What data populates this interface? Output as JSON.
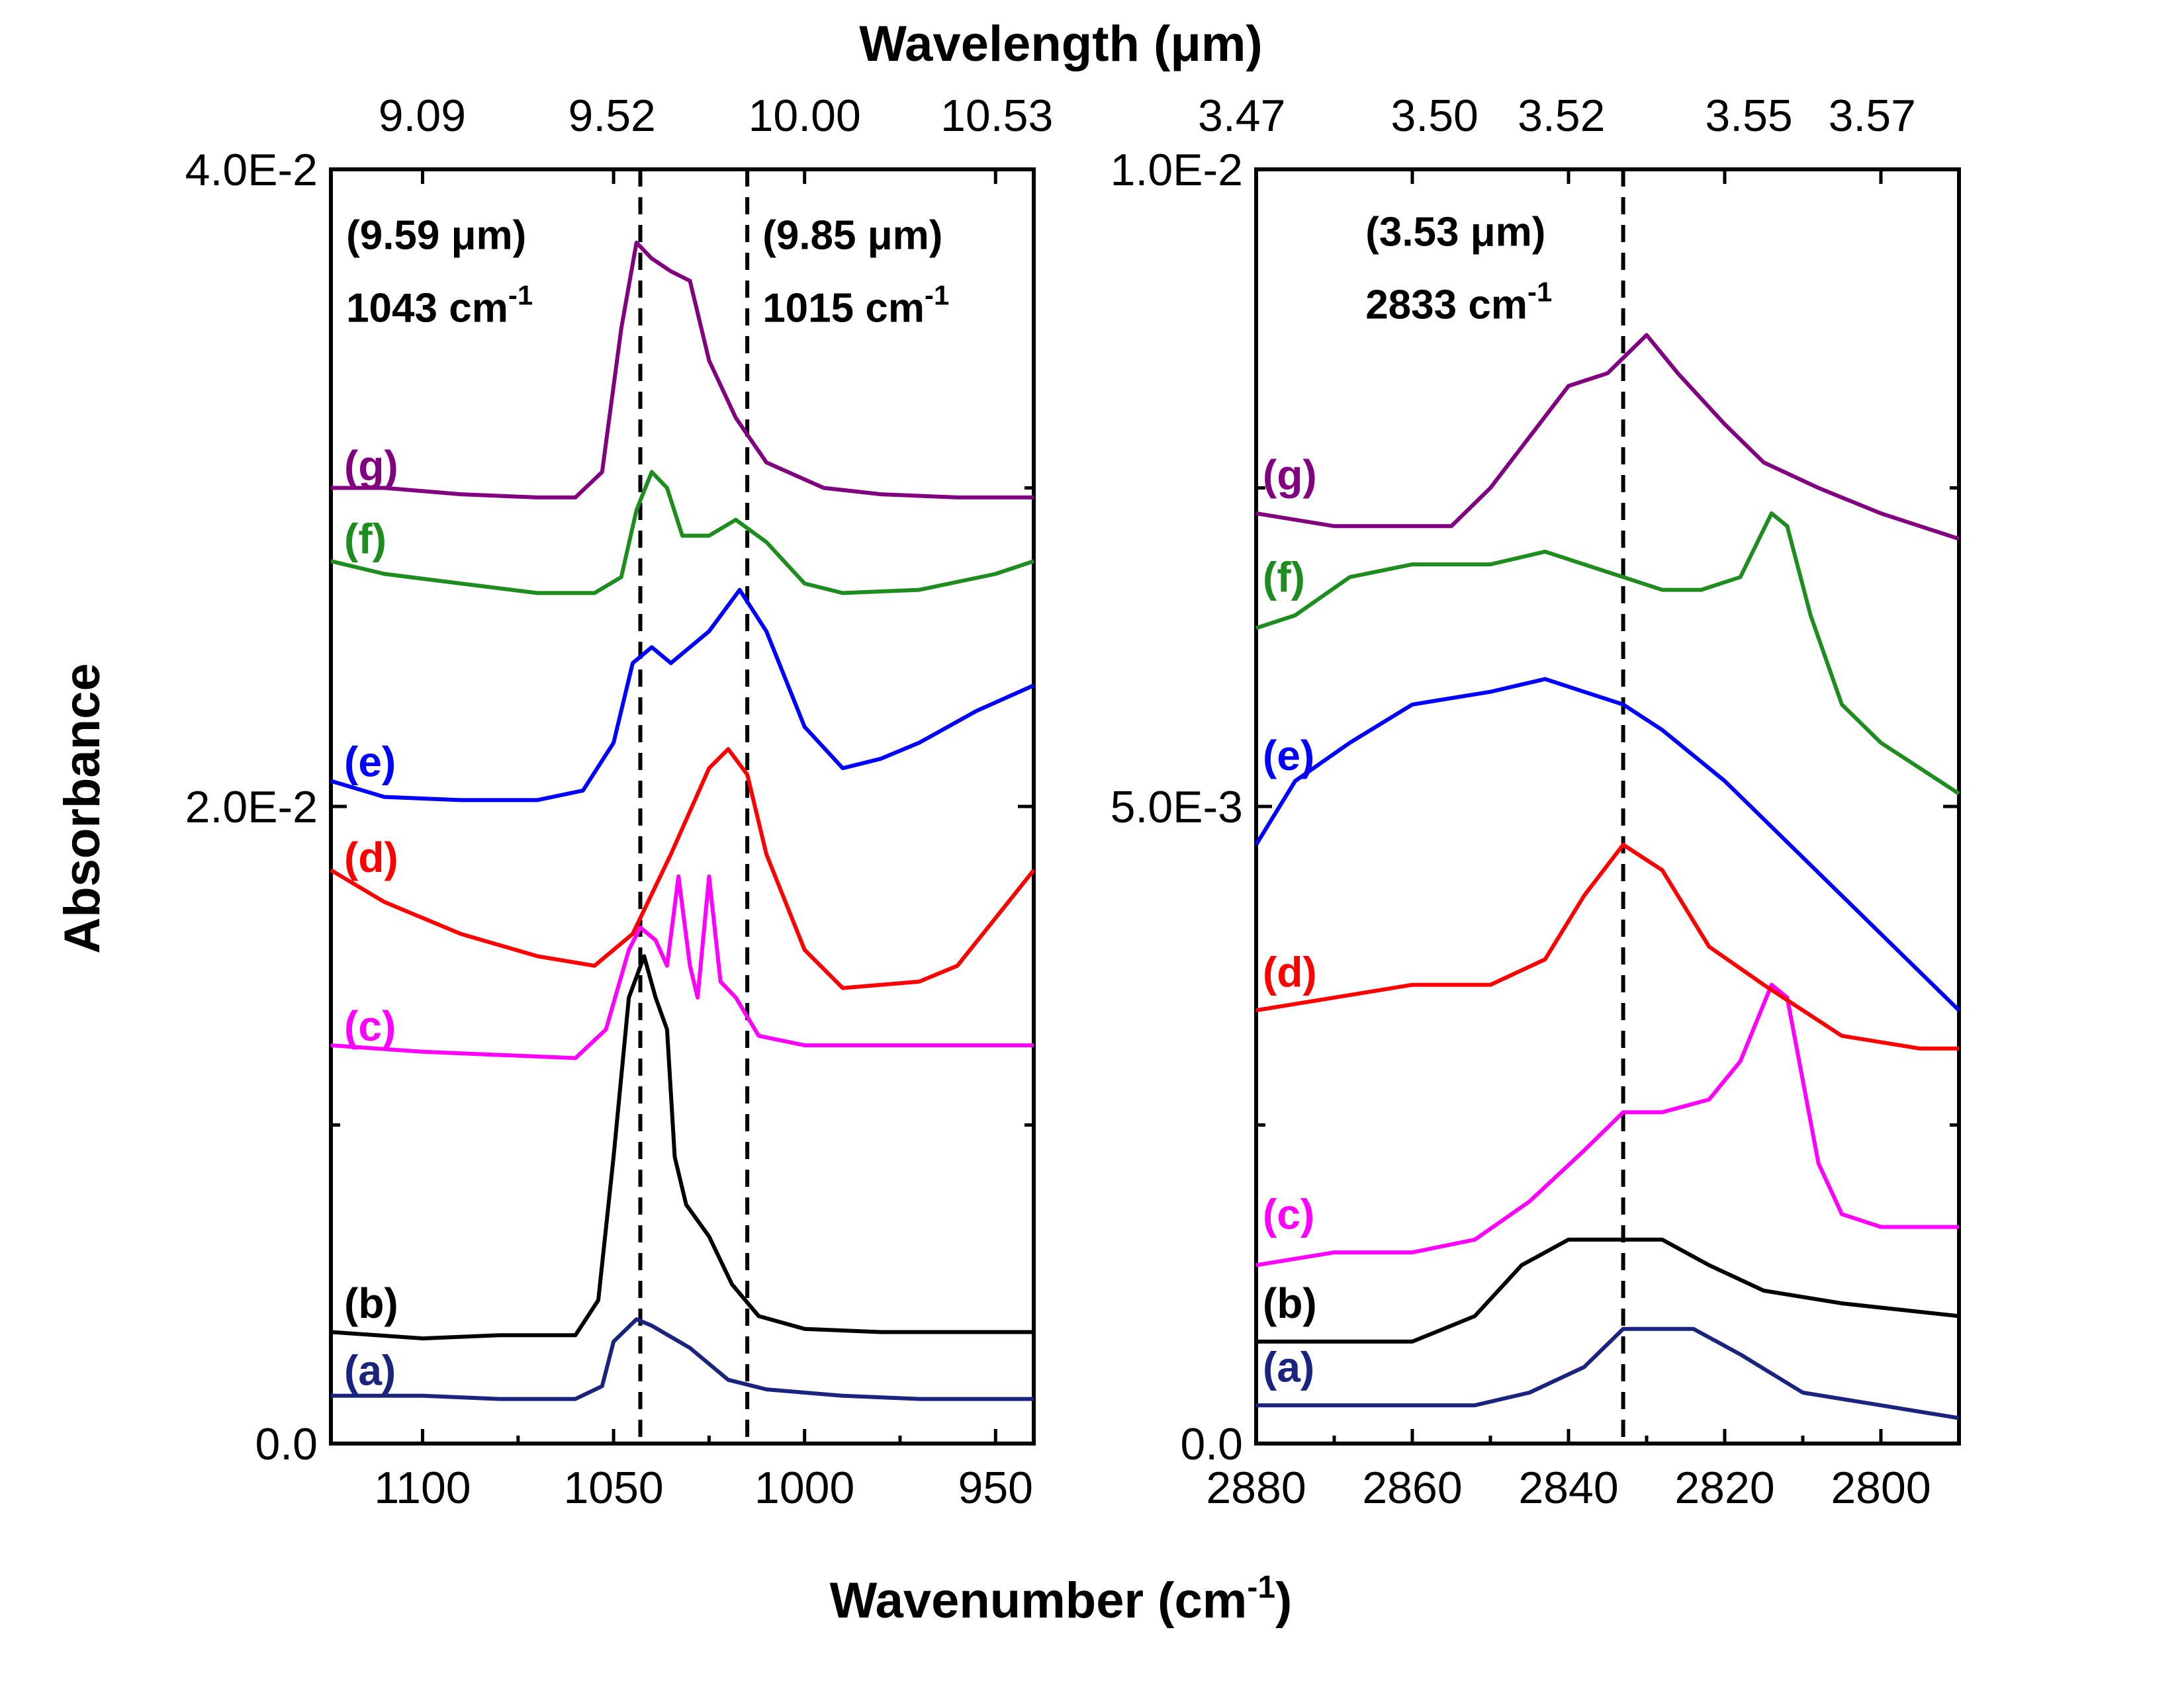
{
  "figure": {
    "bottom_axis_title": "Wavenumber (cm",
    "bottom_axis_title_sup": "-1",
    "bottom_axis_title_end": ")",
    "top_axis_title": "Wavelength (μm)",
    "left_axis_title": "Absorbance"
  },
  "chart_data": [
    {
      "type": "line",
      "panel": "left",
      "x_reversed": true,
      "xlim": [
        1124,
        940
      ],
      "ylim": [
        0,
        0.04
      ],
      "xticks": [
        1100,
        1050,
        1000,
        950
      ],
      "xtick_labels": [
        "1100",
        "1050",
        "1000",
        "950"
      ],
      "yticks": [
        0,
        0.02,
        0.04
      ],
      "ytick_labels": [
        "0.0",
        "2.0E-2",
        "4.0E-2"
      ],
      "top_ticks_um": [
        9.09,
        9.52,
        10.0,
        10.53
      ],
      "top_tick_labels": [
        "9.09",
        "9.52",
        "10.00",
        "10.53"
      ],
      "reference_lines": [
        1043,
        1015
      ],
      "annotations": [
        {
          "line1": "(9.59 μm)",
          "line2": "1043 cm",
          "sup": "-1",
          "at_x": 1120,
          "at_y": 0.0375
        },
        {
          "line1": "(9.85 μm)",
          "line2": "1015 cm",
          "sup": "-1",
          "at_x": 1011,
          "at_y": 0.0375
        }
      ],
      "series": [
        {
          "name": "(a)",
          "color": "#1a237e",
          "label_y": 0.0023,
          "points": [
            [
              1124,
              0.0015
            ],
            [
              1100,
              0.0015
            ],
            [
              1080,
              0.0014
            ],
            [
              1060,
              0.0014
            ],
            [
              1053,
              0.0018
            ],
            [
              1050,
              0.0032
            ],
            [
              1044,
              0.0039
            ],
            [
              1040,
              0.0037
            ],
            [
              1030,
              0.003
            ],
            [
              1020,
              0.002
            ],
            [
              1010,
              0.0017
            ],
            [
              990,
              0.0015
            ],
            [
              970,
              0.0014
            ],
            [
              950,
              0.0014
            ],
            [
              940,
              0.0014
            ]
          ]
        },
        {
          "name": "(b)",
          "color": "#000000",
          "label_y": 0.0044,
          "points": [
            [
              1124,
              0.0035
            ],
            [
              1100,
              0.0033
            ],
            [
              1080,
              0.0034
            ],
            [
              1060,
              0.0034
            ],
            [
              1054,
              0.0045
            ],
            [
              1050,
              0.009
            ],
            [
              1046,
              0.014
            ],
            [
              1042,
              0.0153
            ],
            [
              1039,
              0.014
            ],
            [
              1036,
              0.013
            ],
            [
              1034,
              0.009
            ],
            [
              1031,
              0.0075
            ],
            [
              1025,
              0.0065
            ],
            [
              1019,
              0.005
            ],
            [
              1012,
              0.004
            ],
            [
              1000,
              0.0036
            ],
            [
              980,
              0.0035
            ],
            [
              960,
              0.0035
            ],
            [
              940,
              0.0035
            ]
          ]
        },
        {
          "name": "(c)",
          "color": "#ff00ff",
          "label_y": 0.0131,
          "points": [
            [
              1124,
              0.0125
            ],
            [
              1100,
              0.0123
            ],
            [
              1080,
              0.0122
            ],
            [
              1060,
              0.0121
            ],
            [
              1052,
              0.013
            ],
            [
              1046,
              0.0155
            ],
            [
              1043,
              0.0162
            ],
            [
              1039,
              0.0158
            ],
            [
              1036,
              0.015
            ],
            [
              1033,
              0.0178
            ],
            [
              1030,
              0.015
            ],
            [
              1028,
              0.014
            ],
            [
              1025,
              0.0178
            ],
            [
              1022,
              0.0145
            ],
            [
              1018,
              0.014
            ],
            [
              1012,
              0.0128
            ],
            [
              1000,
              0.0125
            ],
            [
              980,
              0.0125
            ],
            [
              960,
              0.0125
            ],
            [
              940,
              0.0125
            ]
          ]
        },
        {
          "name": "(d)",
          "color": "#ff0000",
          "label_y": 0.0184,
          "points": [
            [
              1124,
              0.018
            ],
            [
              1110,
              0.017
            ],
            [
              1090,
              0.016
            ],
            [
              1070,
              0.0153
            ],
            [
              1055,
              0.015
            ],
            [
              1045,
              0.016
            ],
            [
              1035,
              0.0185
            ],
            [
              1025,
              0.0212
            ],
            [
              1020,
              0.0218
            ],
            [
              1015,
              0.021
            ],
            [
              1010,
              0.0185
            ],
            [
              1000,
              0.0155
            ],
            [
              990,
              0.0143
            ],
            [
              970,
              0.0145
            ],
            [
              960,
              0.015
            ],
            [
              940,
              0.018
            ]
          ]
        },
        {
          "name": "(e)",
          "color": "#0000ff",
          "label_y": 0.0214,
          "points": [
            [
              1124,
              0.0208
            ],
            [
              1110,
              0.0203
            ],
            [
              1090,
              0.0202
            ],
            [
              1070,
              0.0202
            ],
            [
              1058,
              0.0205
            ],
            [
              1050,
              0.022
            ],
            [
              1045,
              0.0245
            ],
            [
              1040,
              0.025
            ],
            [
              1035,
              0.0245
            ],
            [
              1025,
              0.0255
            ],
            [
              1017,
              0.0268
            ],
            [
              1010,
              0.0255
            ],
            [
              1000,
              0.0225
            ],
            [
              990,
              0.0212
            ],
            [
              980,
              0.0215
            ],
            [
              970,
              0.022
            ],
            [
              955,
              0.023
            ],
            [
              940,
              0.0238
            ]
          ]
        },
        {
          "name": "(f)",
          "color": "#1e8c1e",
          "label_y": 0.0284,
          "points": [
            [
              1124,
              0.0277
            ],
            [
              1110,
              0.0273
            ],
            [
              1090,
              0.027
            ],
            [
              1070,
              0.0267
            ],
            [
              1055,
              0.0267
            ],
            [
              1048,
              0.0272
            ],
            [
              1044,
              0.0293
            ],
            [
              1040,
              0.0305
            ],
            [
              1036,
              0.03
            ],
            [
              1032,
              0.0285
            ],
            [
              1025,
              0.0285
            ],
            [
              1018,
              0.029
            ],
            [
              1010,
              0.0283
            ],
            [
              1000,
              0.027
            ],
            [
              990,
              0.0267
            ],
            [
              970,
              0.0268
            ],
            [
              950,
              0.0273
            ],
            [
              940,
              0.0277
            ]
          ]
        },
        {
          "name": "(g)",
          "color": "#800080",
          "label_y": 0.0307,
          "points": [
            [
              1124,
              0.03
            ],
            [
              1110,
              0.03
            ],
            [
              1090,
              0.0298
            ],
            [
              1070,
              0.0297
            ],
            [
              1060,
              0.0297
            ],
            [
              1053,
              0.0305
            ],
            [
              1048,
              0.035
            ],
            [
              1044,
              0.0377
            ],
            [
              1040,
              0.0372
            ],
            [
              1035,
              0.0368
            ],
            [
              1030,
              0.0365
            ],
            [
              1025,
              0.034
            ],
            [
              1018,
              0.0322
            ],
            [
              1010,
              0.0308
            ],
            [
              995,
              0.03
            ],
            [
              980,
              0.0298
            ],
            [
              960,
              0.0297
            ],
            [
              940,
              0.0297
            ]
          ]
        }
      ]
    },
    {
      "type": "line",
      "panel": "right",
      "x_reversed": true,
      "xlim": [
        2880,
        2790
      ],
      "ylim": [
        0,
        0.01
      ],
      "xticks": [
        2880,
        2860,
        2840,
        2820,
        2800
      ],
      "xtick_labels": [
        "2880",
        "2860",
        "2840",
        "2820",
        "2800"
      ],
      "yticks": [
        0,
        0.005,
        0.01
      ],
      "ytick_labels": [
        "0.0",
        "5.0E-3",
        "1.0E-2"
      ],
      "top_ticks_um": [
        3.47,
        3.5,
        3.52,
        3.55,
        3.57
      ],
      "top_tick_labels": [
        "3.47",
        "3.50",
        "3.52",
        "3.55",
        "3.57"
      ],
      "reference_lines": [
        2833
      ],
      "annotations": [
        {
          "line1": "(3.53 μm)",
          "line2": "2833 cm",
          "sup": "-1",
          "at_x": 2866,
          "at_y": 0.0094
        }
      ],
      "series": [
        {
          "name": "(a)",
          "color": "#1a237e",
          "label_y": 0.0006,
          "points": [
            [
              2880,
              0.0003
            ],
            [
              2870,
              0.0003
            ],
            [
              2860,
              0.0003
            ],
            [
              2852,
              0.0003
            ],
            [
              2845,
              0.0004
            ],
            [
              2838,
              0.0006
            ],
            [
              2833,
              0.0009
            ],
            [
              2828,
              0.0009
            ],
            [
              2824,
              0.0009
            ],
            [
              2818,
              0.0007
            ],
            [
              2810,
              0.0004
            ],
            [
              2800,
              0.0003
            ],
            [
              2790,
              0.0002
            ]
          ]
        },
        {
          "name": "(b)",
          "color": "#000000",
          "label_y": 0.0011,
          "points": [
            [
              2880,
              0.0008
            ],
            [
              2870,
              0.0008
            ],
            [
              2860,
              0.0008
            ],
            [
              2852,
              0.001
            ],
            [
              2846,
              0.0014
            ],
            [
              2840,
              0.0016
            ],
            [
              2833,
              0.0016
            ],
            [
              2828,
              0.0016
            ],
            [
              2822,
              0.0014
            ],
            [
              2815,
              0.0012
            ],
            [
              2805,
              0.0011
            ],
            [
              2790,
              0.001
            ]
          ]
        },
        {
          "name": "(c)",
          "color": "#ff00ff",
          "label_y": 0.0018,
          "points": [
            [
              2880,
              0.0014
            ],
            [
              2870,
              0.0015
            ],
            [
              2860,
              0.0015
            ],
            [
              2852,
              0.0016
            ],
            [
              2845,
              0.0019
            ],
            [
              2838,
              0.0023
            ],
            [
              2833,
              0.0026
            ],
            [
              2828,
              0.0026
            ],
            [
              2822,
              0.0027
            ],
            [
              2818,
              0.003
            ],
            [
              2814,
              0.0036
            ],
            [
              2812,
              0.0035
            ],
            [
              2808,
              0.0022
            ],
            [
              2805,
              0.0018
            ],
            [
              2800,
              0.0017
            ],
            [
              2790,
              0.0017
            ]
          ]
        },
        {
          "name": "(d)",
          "color": "#ff0000",
          "label_y": 0.0037,
          "points": [
            [
              2880,
              0.0034
            ],
            [
              2870,
              0.0035
            ],
            [
              2860,
              0.0036
            ],
            [
              2850,
              0.0036
            ],
            [
              2843,
              0.0038
            ],
            [
              2838,
              0.0043
            ],
            [
              2833,
              0.0047
            ],
            [
              2828,
              0.0045
            ],
            [
              2822,
              0.0039
            ],
            [
              2815,
              0.0036
            ],
            [
              2805,
              0.0032
            ],
            [
              2795,
              0.0031
            ],
            [
              2790,
              0.0031
            ]
          ]
        },
        {
          "name": "(e)",
          "color": "#0000ff",
          "label_y": 0.0054,
          "points": [
            [
              2880,
              0.0047
            ],
            [
              2875,
              0.0052
            ],
            [
              2868,
              0.0055
            ],
            [
              2860,
              0.0058
            ],
            [
              2850,
              0.0059
            ],
            [
              2843,
              0.006
            ],
            [
              2838,
              0.0059
            ],
            [
              2833,
              0.0058
            ],
            [
              2828,
              0.0056
            ],
            [
              2820,
              0.0052
            ],
            [
              2810,
              0.0046
            ],
            [
              2800,
              0.004
            ],
            [
              2790,
              0.0034
            ]
          ]
        },
        {
          "name": "(f)",
          "color": "#1e8c1e",
          "label_y": 0.0068,
          "points": [
            [
              2880,
              0.0064
            ],
            [
              2875,
              0.0065
            ],
            [
              2868,
              0.0068
            ],
            [
              2860,
              0.0069
            ],
            [
              2850,
              0.0069
            ],
            [
              2843,
              0.007
            ],
            [
              2838,
              0.0069
            ],
            [
              2833,
              0.0068
            ],
            [
              2828,
              0.0067
            ],
            [
              2823,
              0.0067
            ],
            [
              2818,
              0.0068
            ],
            [
              2814,
              0.0073
            ],
            [
              2812,
              0.0072
            ],
            [
              2809,
              0.0065
            ],
            [
              2805,
              0.0058
            ],
            [
              2800,
              0.0055
            ],
            [
              2790,
              0.0051
            ]
          ]
        },
        {
          "name": "(g)",
          "color": "#800080",
          "label_y": 0.0076,
          "points": [
            [
              2880,
              0.0073
            ],
            [
              2870,
              0.0072
            ],
            [
              2860,
              0.0072
            ],
            [
              2855,
              0.0072
            ],
            [
              2850,
              0.0075
            ],
            [
              2845,
              0.0079
            ],
            [
              2840,
              0.0083
            ],
            [
              2835,
              0.0084
            ],
            [
              2830,
              0.0087
            ],
            [
              2826,
              0.0084
            ],
            [
              2820,
              0.008
            ],
            [
              2815,
              0.0077
            ],
            [
              2808,
              0.0075
            ],
            [
              2800,
              0.0073
            ],
            [
              2790,
              0.0071
            ]
          ]
        }
      ]
    }
  ]
}
